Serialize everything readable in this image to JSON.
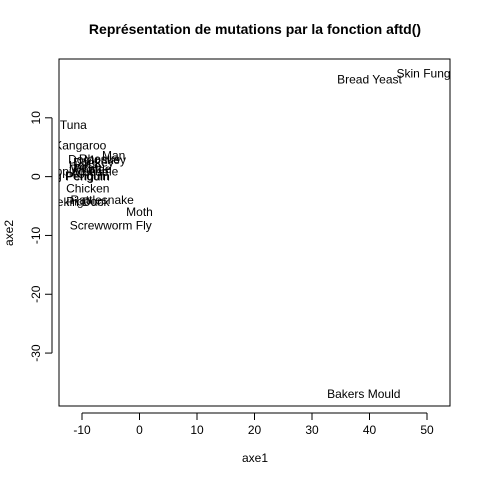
{
  "chart_data": {
    "type": "scatter",
    "title": "Représentation de mutations par la fonction aftd()",
    "xlabel": "axe1",
    "ylabel": "axe2",
    "xlim": [
      -14,
      54
    ],
    "ylim": [
      -39,
      20
    ],
    "xticks": [
      -10,
      0,
      10,
      20,
      30,
      40,
      50
    ],
    "yticks": [
      -30,
      -20,
      -10,
      0,
      10
    ],
    "grid": false,
    "points": [
      {
        "label": "Skin Fungus",
        "x": 50.5,
        "y": 17.5
      },
      {
        "label": "Bread Yeast",
        "x": 40.0,
        "y": 16.5
      },
      {
        "label": "Tuna",
        "x": -11.5,
        "y": 8.8
      },
      {
        "label": "Kangaroo",
        "x": -10.3,
        "y": 5.3
      },
      {
        "label": "Man",
        "x": -4.5,
        "y": 3.6
      },
      {
        "label": "Rhesus",
        "x": -7.0,
        "y": 3.0
      },
      {
        "label": "Dog",
        "x": -10.5,
        "y": 2.9
      },
      {
        "label": "Monkey",
        "x": -6.0,
        "y": 2.8
      },
      {
        "label": "Donkey",
        "x": -8.0,
        "y": 2.4
      },
      {
        "label": "Horse",
        "x": -9.5,
        "y": 1.9
      },
      {
        "label": "Pig",
        "x": -10.0,
        "y": 1.4
      },
      {
        "label": "Whale",
        "x": -9.0,
        "y": 1.2
      },
      {
        "label": "Mouse",
        "x": -8.5,
        "y": 0.8
      },
      {
        "label": "Turtle",
        "x": -7.5,
        "y": 1.3
      },
      {
        "label": "Snapping Turtle",
        "x": -11.0,
        "y": 0.9
      },
      {
        "label": "King Penguin",
        "x": -11.5,
        "y": 0.1
      },
      {
        "label": "Penguin",
        "x": -9.0,
        "y": 0.0
      },
      {
        "label": "Chicken",
        "x": -9.0,
        "y": -2.0
      },
      {
        "label": "Pekin Duck",
        "x": -10.5,
        "y": -4.3
      },
      {
        "label": "Pigeon",
        "x": -9.5,
        "y": -4.2
      },
      {
        "label": "Rattlesnake",
        "x": -6.5,
        "y": -4.0
      },
      {
        "label": "Moth",
        "x": 0.0,
        "y": -6.0
      },
      {
        "label": "Screwworm Fly",
        "x": -5.0,
        "y": -8.3
      },
      {
        "label": "Bakers Mould",
        "x": 39.0,
        "y": -37.0
      }
    ]
  }
}
